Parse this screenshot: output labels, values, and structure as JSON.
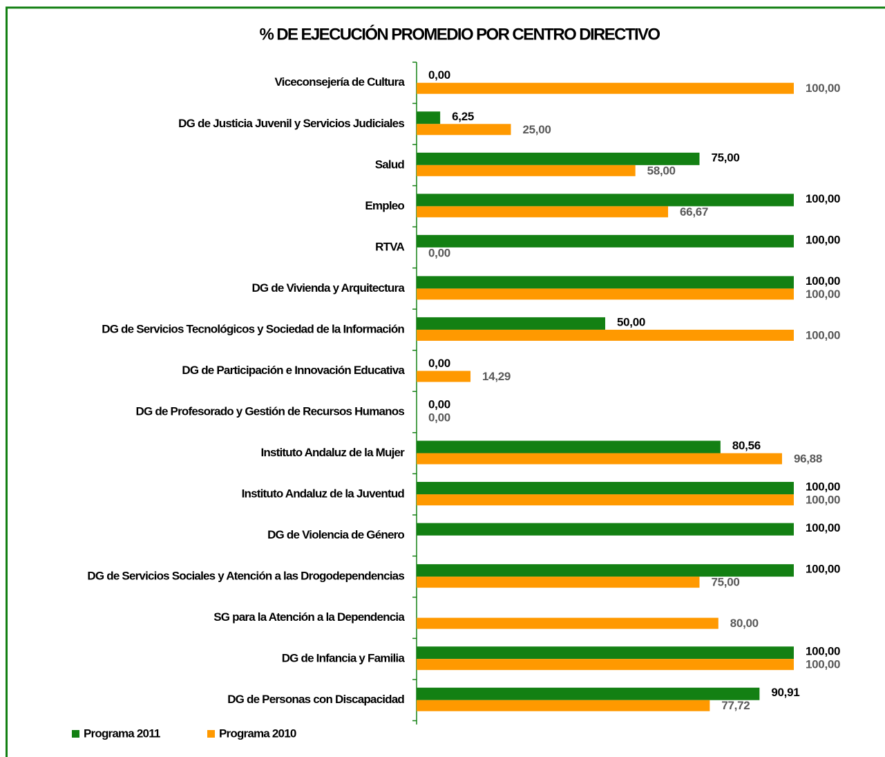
{
  "chart_data": {
    "type": "bar",
    "orientation": "horizontal",
    "title": "% DE EJECUCIÓN PROMEDIO POR CENTRO DIRECTIVO",
    "categories": [
      "Viceconsejería de Cultura",
      "DG de Justicia Juvenil y Servicios Judiciales",
      "Salud",
      "Empleo",
      "RTVA",
      "DG de Vivienda y Arquitectura",
      "DG de Servicios Tecnológicos y Sociedad de la Información",
      "DG de Participación e Innovación Educativa",
      "DG de Profesorado y Gestión de Recursos Humanos",
      "Instituto Andaluz de la Mujer",
      "Instituto Andaluz de la Juventud",
      "DG de Violencia de Género",
      "DG de Servicios Sociales y Atención a las Drogodependencias",
      "SG para la Atención a la Dependencia",
      "DG de Infancia y Familia",
      "DG de Personas con Discapacidad"
    ],
    "series": [
      {
        "name": "Programa 2011",
        "color": "#138013",
        "values": [
          0,
          6.25,
          75,
          100,
          100,
          100,
          50,
          0,
          0,
          80.56,
          100,
          100,
          100,
          null,
          100,
          90.91
        ],
        "value_labels": [
          "0,00",
          "6,25",
          "75,00",
          "100,00",
          "100,00",
          "100,00",
          "50,00",
          "0,00",
          "0,00",
          "80,56",
          "100,00",
          "100,00",
          "100,00",
          null,
          "100,00",
          "90,91"
        ]
      },
      {
        "name": "Programa 2010",
        "color": "#ff9900",
        "values": [
          100,
          25,
          58,
          66.67,
          0,
          100,
          100,
          14.29,
          0,
          96.88,
          100,
          null,
          75,
          80,
          100,
          77.72
        ],
        "value_labels": [
          "100,00",
          "25,00",
          "58,00",
          "66,67",
          "0,00",
          "100,00",
          "100,00",
          "14,29",
          "0,00",
          "96,88",
          "100,00",
          null,
          "75,00",
          "80,00",
          "100,00",
          "77,72"
        ]
      }
    ],
    "xlim": [
      0,
      100
    ],
    "legend": "bottom-left"
  }
}
